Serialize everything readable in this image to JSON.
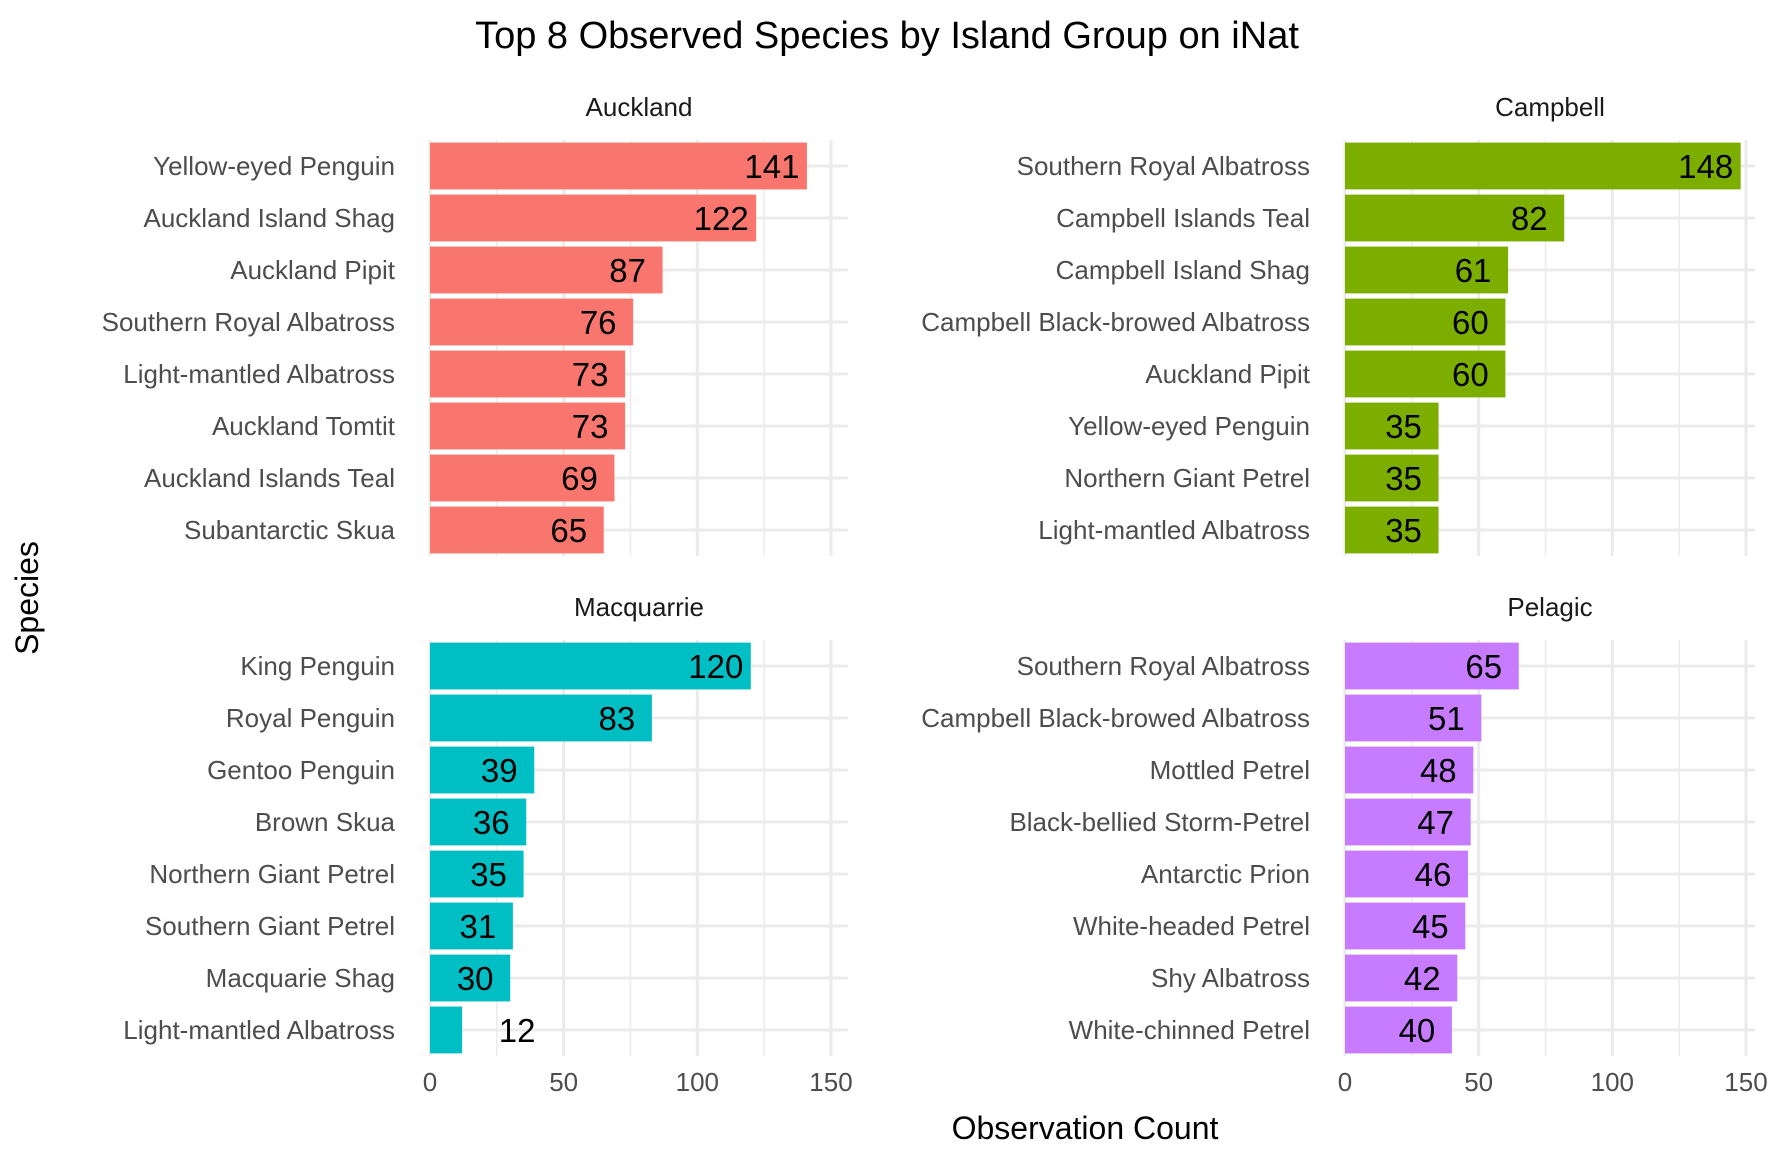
{
  "chart_data": {
    "type": "bar",
    "title": "Top 8 Observed Species by Island Group on iNat",
    "xlabel": "Observation Count",
    "ylabel": "Species",
    "xlim": [
      0,
      150
    ],
    "x_ticks": [
      "0",
      "50",
      "100",
      "150"
    ],
    "grid": true,
    "legend": "none",
    "panels": [
      {
        "name": "Auckland",
        "color": "#F8766D",
        "categories": [
          "Yellow-eyed Penguin",
          "Auckland Island Shag",
          "Auckland Pipit",
          "Southern Royal Albatross",
          "Light-mantled Albatross",
          "Auckland Tomtit",
          "Auckland Islands Teal",
          "Subantarctic Skua"
        ],
        "values": [
          141,
          122,
          87,
          76,
          73,
          73,
          69,
          65
        ]
      },
      {
        "name": "Campbell",
        "color": "#7CAE00",
        "categories": [
          "Southern Royal Albatross",
          "Campbell Islands Teal",
          "Campbell Island Shag",
          "Campbell Black-browed Albatross",
          "Auckland Pipit",
          "Yellow-eyed Penguin",
          "Northern Giant Petrel",
          "Light-mantled Albatross"
        ],
        "values": [
          148,
          82,
          61,
          60,
          60,
          35,
          35,
          35
        ]
      },
      {
        "name": "Macquarrie",
        "color": "#00BFC4",
        "categories": [
          "King Penguin",
          "Royal Penguin",
          "Gentoo Penguin",
          "Brown Skua",
          "Northern Giant Petrel",
          "Southern Giant Petrel",
          "Macquarie Shag",
          "Light-mantled Albatross"
        ],
        "values": [
          120,
          83,
          39,
          36,
          35,
          31,
          30,
          12
        ]
      },
      {
        "name": "Pelagic",
        "color": "#C77CFF",
        "categories": [
          "Southern Royal Albatross",
          "Campbell Black-browed Albatross",
          "Mottled Petrel",
          "Black-bellied Storm-Petrel",
          "Antarctic Prion",
          "White-headed Petrel",
          "Shy Albatross",
          "White-chinned Petrel"
        ],
        "values": [
          65,
          51,
          48,
          47,
          46,
          45,
          42,
          40
        ]
      }
    ]
  }
}
